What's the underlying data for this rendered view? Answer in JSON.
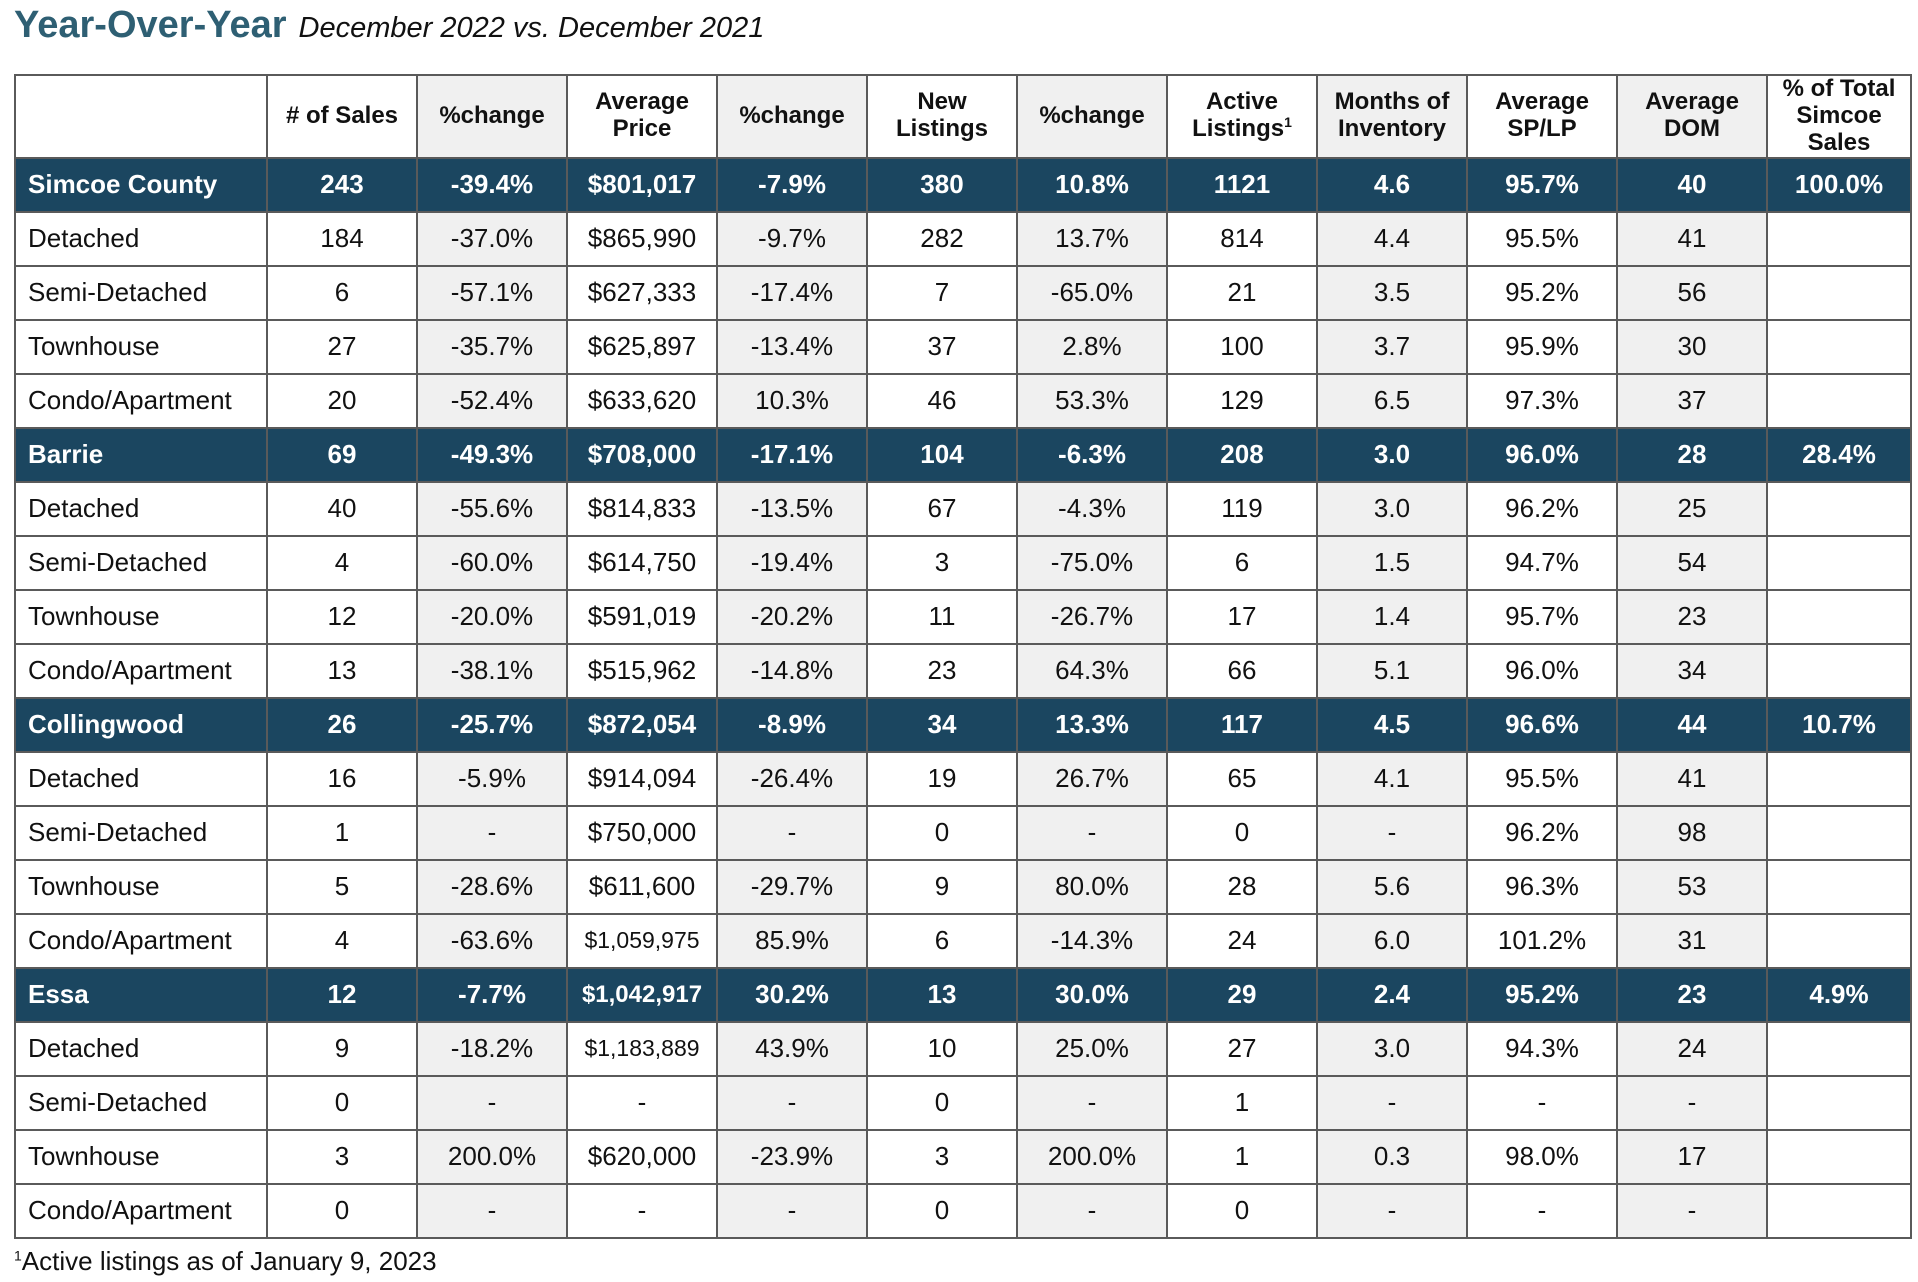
{
  "header": {
    "title": "Year-Over-Year",
    "subtitle": "December 2022 vs. December 2021"
  },
  "colors": {
    "title": "#2e5f73",
    "region_row_bg": "#1b4660",
    "shaded_column_bg": "#f0f0f0"
  },
  "table": {
    "columns": [
      "",
      "# of Sales",
      "%change",
      "Average Price",
      "%change",
      "New Listings",
      "%change",
      "Active Listings",
      "Months of Inventory",
      "Average SP/LP",
      "Average DOM",
      "% of Total Simcoe Sales"
    ],
    "active_listings_footnote_marker": "1",
    "rows": [
      {
        "type": "region",
        "cells": [
          "Simcoe County",
          "243",
          "-39.4%",
          "$801,017",
          "-7.9%",
          "380",
          "10.8%",
          "1121",
          "4.6",
          "95.7%",
          "40",
          "100.0%"
        ]
      },
      {
        "type": "sub",
        "cells": [
          "Detached",
          "184",
          "-37.0%",
          "$865,990",
          "-9.7%",
          "282",
          "13.7%",
          "814",
          "4.4",
          "95.5%",
          "41",
          ""
        ]
      },
      {
        "type": "sub",
        "cells": [
          "Semi-Detached",
          "6",
          "-57.1%",
          "$627,333",
          "-17.4%",
          "7",
          "-65.0%",
          "21",
          "3.5",
          "95.2%",
          "56",
          ""
        ]
      },
      {
        "type": "sub",
        "cells": [
          "Townhouse",
          "27",
          "-35.7%",
          "$625,897",
          "-13.4%",
          "37",
          "2.8%",
          "100",
          "3.7",
          "95.9%",
          "30",
          ""
        ]
      },
      {
        "type": "sub",
        "cells": [
          "Condo/Apartment",
          "20",
          "-52.4%",
          "$633,620",
          "10.3%",
          "46",
          "53.3%",
          "129",
          "6.5",
          "97.3%",
          "37",
          ""
        ]
      },
      {
        "type": "region",
        "cells": [
          "Barrie",
          "69",
          "-49.3%",
          "$708,000",
          "-17.1%",
          "104",
          "-6.3%",
          "208",
          "3.0",
          "96.0%",
          "28",
          "28.4%"
        ]
      },
      {
        "type": "sub",
        "cells": [
          "Detached",
          "40",
          "-55.6%",
          "$814,833",
          "-13.5%",
          "67",
          "-4.3%",
          "119",
          "3.0",
          "96.2%",
          "25",
          ""
        ]
      },
      {
        "type": "sub",
        "cells": [
          "Semi-Detached",
          "4",
          "-60.0%",
          "$614,750",
          "-19.4%",
          "3",
          "-75.0%",
          "6",
          "1.5",
          "94.7%",
          "54",
          ""
        ]
      },
      {
        "type": "sub",
        "cells": [
          "Townhouse",
          "12",
          "-20.0%",
          "$591,019",
          "-20.2%",
          "11",
          "-26.7%",
          "17",
          "1.4",
          "95.7%",
          "23",
          ""
        ]
      },
      {
        "type": "sub",
        "cells": [
          "Condo/Apartment",
          "13",
          "-38.1%",
          "$515,962",
          "-14.8%",
          "23",
          "64.3%",
          "66",
          "5.1",
          "96.0%",
          "34",
          ""
        ]
      },
      {
        "type": "region",
        "cells": [
          "Collingwood",
          "26",
          "-25.7%",
          "$872,054",
          "-8.9%",
          "34",
          "13.3%",
          "117",
          "4.5",
          "96.6%",
          "44",
          "10.7%"
        ]
      },
      {
        "type": "sub",
        "cells": [
          "Detached",
          "16",
          "-5.9%",
          "$914,094",
          "-26.4%",
          "19",
          "26.7%",
          "65",
          "4.1",
          "95.5%",
          "41",
          ""
        ]
      },
      {
        "type": "sub",
        "cells": [
          "Semi-Detached",
          "1",
          "-",
          "$750,000",
          "-",
          "0",
          "-",
          "0",
          "-",
          "96.2%",
          "98",
          ""
        ]
      },
      {
        "type": "sub",
        "cells": [
          "Townhouse",
          "5",
          "-28.6%",
          "$611,600",
          "-29.7%",
          "9",
          "80.0%",
          "28",
          "5.6",
          "96.3%",
          "53",
          ""
        ]
      },
      {
        "type": "sub",
        "cells": [
          "Condo/Apartment",
          "4",
          "-63.6%",
          "$1,059,975",
          "85.9%",
          "6",
          "-14.3%",
          "24",
          "6.0",
          "101.2%",
          "31",
          ""
        ]
      },
      {
        "type": "region",
        "cells": [
          "Essa",
          "12",
          "-7.7%",
          "$1,042,917",
          "30.2%",
          "13",
          "30.0%",
          "29",
          "2.4",
          "95.2%",
          "23",
          "4.9%"
        ]
      },
      {
        "type": "sub",
        "cells": [
          "Detached",
          "9",
          "-18.2%",
          "$1,183,889",
          "43.9%",
          "10",
          "25.0%",
          "27",
          "3.0",
          "94.3%",
          "24",
          ""
        ]
      },
      {
        "type": "sub",
        "cells": [
          "Semi-Detached",
          "0",
          "-",
          "-",
          "-",
          "0",
          "-",
          "1",
          "-",
          "-",
          "-",
          ""
        ]
      },
      {
        "type": "sub",
        "cells": [
          "Townhouse",
          "3",
          "200.0%",
          "$620,000",
          "-23.9%",
          "3",
          "200.0%",
          "1",
          "0.3",
          "98.0%",
          "17",
          ""
        ]
      },
      {
        "type": "sub",
        "cells": [
          "Condo/Apartment",
          "0",
          "-",
          "-",
          "-",
          "0",
          "-",
          "0",
          "-",
          "-",
          "-",
          ""
        ]
      }
    ]
  },
  "footnote": {
    "marker": "1",
    "text": "Active listings as of January 9, 2023"
  }
}
